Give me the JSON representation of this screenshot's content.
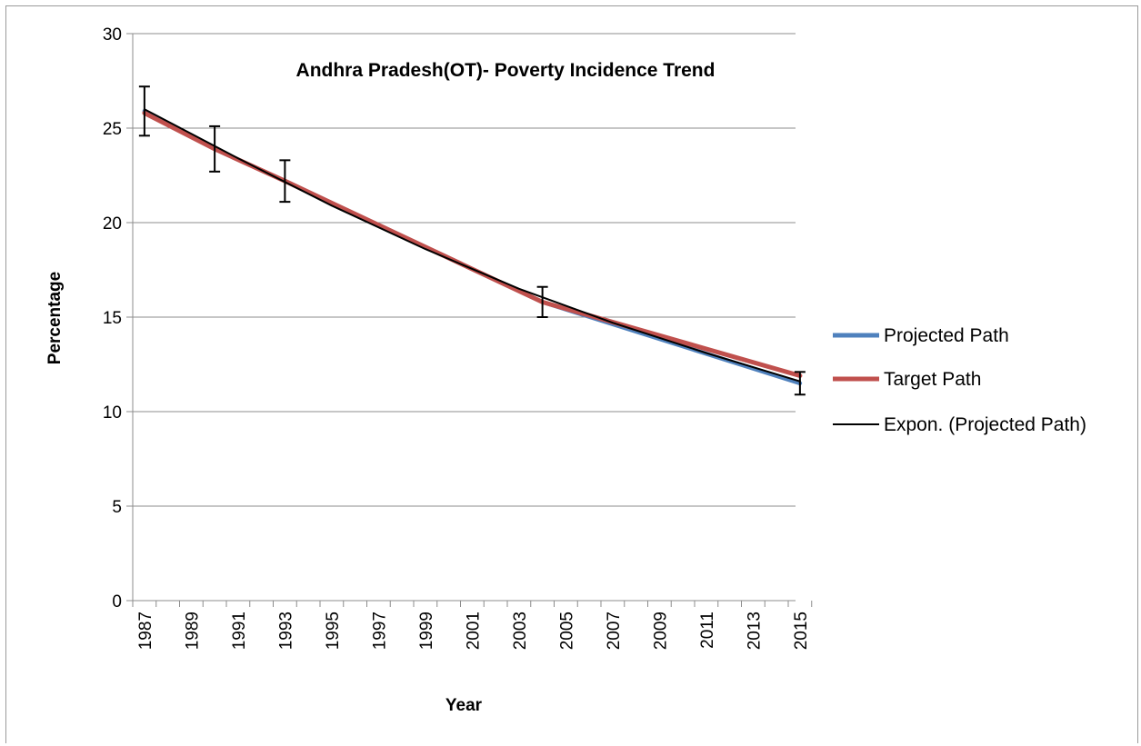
{
  "chart_data": {
    "type": "line",
    "title": "Andhra Pradesh(OT)- Poverty Incidence Trend",
    "xlabel": "Year",
    "ylabel": "Percentage",
    "x_ticks": [
      "1987",
      "1989",
      "1991",
      "1993",
      "1995",
      "1997",
      "1999",
      "2001",
      "2003",
      "2005",
      "2007",
      "2009",
      "2011",
      "2013",
      "2015"
    ],
    "y_ticks": [
      "0",
      "5",
      "10",
      "15",
      "20",
      "25",
      "30"
    ],
    "xlim": [
      1987,
      2015
    ],
    "ylim": [
      0,
      30
    ],
    "grid": "horizontal",
    "legend_position": "right",
    "series": [
      {
        "name": "Projected Path",
        "color": "#4F81BD",
        "x": [
          1987,
          1990,
          1993,
          2004,
          2015
        ],
        "values": [
          25.9,
          23.9,
          22.2,
          15.8,
          11.5
        ],
        "error_bars": [
          1.3,
          1.2,
          1.1,
          0.8,
          0.6
        ]
      },
      {
        "name": "Target Path",
        "color": "#C0504D",
        "x": [
          1987,
          1990,
          1993,
          2004,
          2015
        ],
        "values": [
          25.8,
          23.9,
          22.2,
          15.8,
          11.9
        ]
      },
      {
        "name": "Expon. (Projected Path)",
        "color": "#000000",
        "trendline": "exponential",
        "x": [
          1987,
          1991,
          1995,
          1999,
          2003,
          2007,
          2011,
          2015
        ],
        "values": [
          26.0,
          23.4,
          20.9,
          18.6,
          16.5,
          14.7,
          13.1,
          11.6
        ]
      }
    ]
  }
}
